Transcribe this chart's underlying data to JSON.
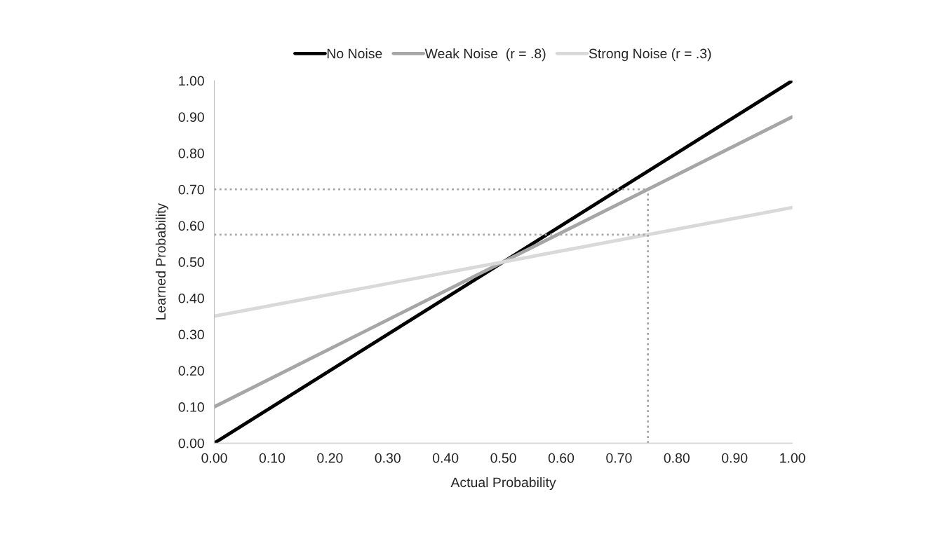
{
  "chart_data": {
    "type": "line",
    "xlabel": "Actual Probability",
    "ylabel": "Learned Probability",
    "series": [
      {
        "name": "No Noise",
        "color": "#000000",
        "x": [
          0,
          1
        ],
        "values": [
          0,
          1
        ]
      },
      {
        "name": "Weak Noise  (r = .8)",
        "color": "#a6a6a6",
        "x": [
          0,
          1
        ],
        "values": [
          0.1,
          0.9
        ]
      },
      {
        "name": "Strong Noise (r = .3)",
        "color": "#d9d9d9",
        "x": [
          0,
          1
        ],
        "values": [
          0.35,
          0.65
        ]
      },
      {
        "color": "#a6a6a6",
        "x": [
          0.75,
          0.75
        ],
        "values": [
          0,
          0.7
        ],
        "line_style": "dotted"
      },
      {
        "color": "#a6a6a6",
        "x": [
          0,
          0.75
        ],
        "values": [
          0.7,
          0.7
        ],
        "line_style": "dotted"
      },
      {
        "color": "#a6a6a6",
        "x": [
          0,
          0.75
        ],
        "values": [
          0.575,
          0.575
        ],
        "line_style": "dotted"
      }
    ],
    "xlim": [
      0,
      1
    ],
    "ylim": [
      0,
      1
    ],
    "xticks": [
      {
        "value": 0,
        "label": "0.00"
      },
      {
        "value": 0.1,
        "label": "0.10"
      },
      {
        "value": 0.2,
        "label": "0.20"
      },
      {
        "value": 0.3,
        "label": "0.30"
      },
      {
        "value": 0.4,
        "label": "0.40"
      },
      {
        "value": 0.5,
        "label": "0.50"
      },
      {
        "value": 0.6,
        "label": "0.60"
      },
      {
        "value": 0.7,
        "label": "0.70"
      },
      {
        "value": 0.8,
        "label": "0.80"
      },
      {
        "value": 0.9,
        "label": "0.90"
      },
      {
        "value": 1,
        "label": "1.00"
      }
    ],
    "yticks": [
      {
        "value": 0,
        "label": "0.00"
      },
      {
        "value": 0.1,
        "label": "0.10"
      },
      {
        "value": 0.2,
        "label": "0.20"
      },
      {
        "value": 0.3,
        "label": "0.30"
      },
      {
        "value": 0.4,
        "label": "0.40"
      },
      {
        "value": 0.5,
        "label": "0.50"
      },
      {
        "value": 0.6,
        "label": "0.60"
      },
      {
        "value": 0.7,
        "label": "0.70"
      },
      {
        "value": 0.8,
        "label": "0.80"
      },
      {
        "value": 0.9,
        "label": "0.90"
      },
      {
        "value": 1,
        "label": "1.00"
      }
    ],
    "grid": false,
    "legend": "top",
    "line_style": "solid"
  }
}
